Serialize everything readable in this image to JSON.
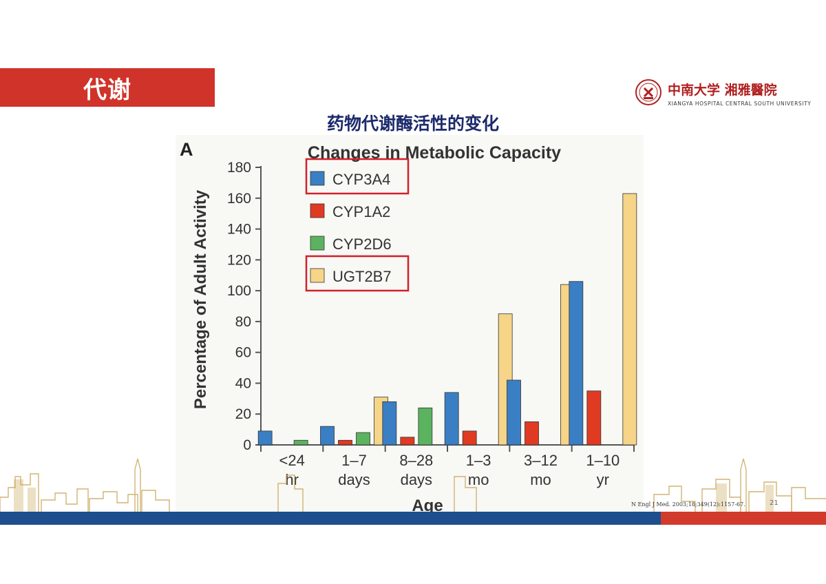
{
  "header": {
    "section_title": "代谢"
  },
  "logo": {
    "cn": "中南大学 湘雅醫院",
    "en": "XIANGYA HOSPITAL CENTRAL SOUTH UNIVERSITY"
  },
  "slide_title": "药物代谢酶活性的变化",
  "chart_data": {
    "type": "bar",
    "panel_label": "A",
    "title": "Changes in Metabolic Capacity",
    "ylabel": "Percentage of Adult Activity",
    "xlabel": "Age",
    "ylim": [
      0,
      180
    ],
    "yticks": [
      0,
      20,
      40,
      60,
      80,
      100,
      120,
      140,
      160,
      180
    ],
    "categories": [
      [
        "<24",
        "hr"
      ],
      [
        "1–7",
        "days"
      ],
      [
        "8–28",
        "days"
      ],
      [
        "1–3",
        "mo"
      ],
      [
        "3–12",
        "mo"
      ],
      [
        "1–10",
        "yr"
      ]
    ],
    "series": [
      {
        "name": "CYP3A4",
        "color": "#3a7fc4",
        "values": [
          9,
          12,
          28,
          34,
          42,
          106
        ],
        "highlighted": true
      },
      {
        "name": "CYP1A2",
        "color": "#e03a22",
        "values": [
          0,
          3,
          5,
          9,
          15,
          35
        ],
        "highlighted": false
      },
      {
        "name": "CYP2D6",
        "color": "#5cb35f",
        "values": [
          3,
          8,
          24,
          null,
          null,
          null
        ],
        "highlighted": false
      },
      {
        "name": "UGT2B7",
        "color": "#f6d488",
        "values": [
          null,
          31,
          null,
          85,
          104,
          163
        ],
        "highlighted": true
      }
    ],
    "legend_position": "top-left",
    "highlight_color": "#d2202a",
    "grid": false
  },
  "citation": "N Engl J Med. 2003;18;349(12):1157-67.",
  "page_number": "21",
  "colors": {
    "header_red": "#d0332a",
    "title_navy": "#1c2a6b",
    "band_blue": "#1d4e8e",
    "band_red": "#d23a2b",
    "skyline_gold": "#c9a85a"
  }
}
